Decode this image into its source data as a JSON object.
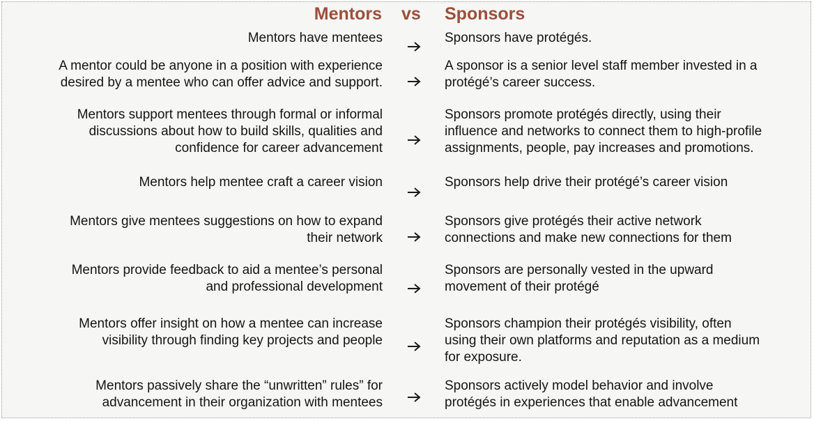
{
  "header": {
    "left": "Mentors",
    "middle": "vs",
    "right": "Sponsors"
  },
  "arrow_icon": "right-arrow-icon",
  "colors": {
    "heading": "#9c4f3b",
    "text": "#141414",
    "background": "#f6f6f4"
  },
  "rows": [
    {
      "mentor": [
        "Mentors have mentees"
      ],
      "sponsor": [
        "Sponsors have protégés."
      ]
    },
    {
      "mentor": [
        "A mentor could be anyone in a position with experience",
        "desired by a mentee who can offer advice and support."
      ],
      "sponsor": [
        "A sponsor is a senior level staff member invested in a",
        "protégé’s career success."
      ]
    },
    {
      "mentor": [
        "Mentors support mentees through formal or informal",
        "discussions about how to build skills, qualities and",
        "confidence for career advancement"
      ],
      "sponsor": [
        "Sponsors promote protégés directly, using their",
        "influence and networks to connect them to high-profile",
        "assignments, people, pay increases and promotions."
      ]
    },
    {
      "mentor": [
        "Mentors help mentee craft a career vision"
      ],
      "sponsor": [
        "Sponsors help drive their protégé’s career vision"
      ]
    },
    {
      "mentor": [
        "Mentors give mentees suggestions on how to expand",
        "their network"
      ],
      "sponsor": [
        "Sponsors give protégés their active network",
        "connections and make new connections for them"
      ]
    },
    {
      "mentor": [
        "Mentors provide feedback to aid a mentee’s personal",
        "and professional development"
      ],
      "sponsor": [
        "Sponsors are personally vested in the upward",
        "movement of their protégé"
      ]
    },
    {
      "mentor": [
        "Mentors offer insight on how a mentee can increase",
        "visibility through finding key projects and people"
      ],
      "sponsor": [
        "Sponsors champion their protégés visibility, often",
        "using their own platforms and reputation as a medium",
        "for exposure."
      ]
    },
    {
      "mentor": [
        "Mentors passively share the “unwritten” rules” for",
        "advancement in their organization with mentees"
      ],
      "sponsor": [
        "Sponsors actively model behavior and involve",
        "protégés in experiences that enable advancement"
      ]
    }
  ]
}
